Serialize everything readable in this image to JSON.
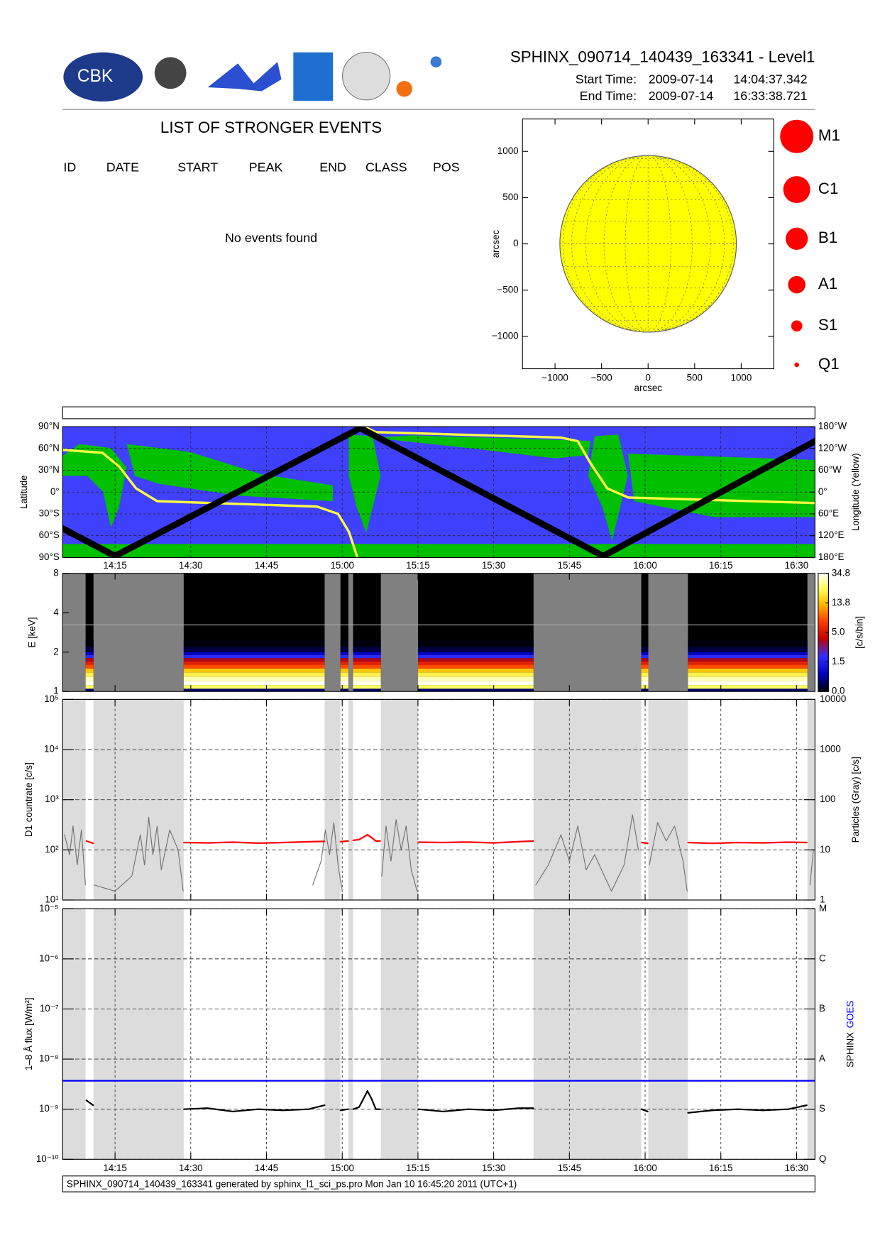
{
  "header": {
    "title": "SPHINX_090714_140439_163341 - Level1",
    "start_label": "Start Time:",
    "start_date": "2009-07-14",
    "start_time": "14:04:37.342",
    "end_label": "End Time:",
    "end_date": "2009-07-14",
    "end_time": "16:33:38.721",
    "logo_text": "CBK"
  },
  "events": {
    "title": "LIST OF STRONGER EVENTS",
    "columns": [
      "ID",
      "DATE",
      "START",
      "PEAK",
      "END",
      "CLASS",
      "POS"
    ],
    "message": "No events found"
  },
  "footer": "SPHINX_090714_140439_163341 generated by sphinx_l1_sci_ps.pro Mon Jan 10 16:45:20 2011 (UTC+1)",
  "chart_data": [
    {
      "type": "disk",
      "xlabel": "arcsec",
      "ylabel": "arcsec",
      "xlim": [
        -1350,
        1350
      ],
      "ylim": [
        -1350,
        1350
      ],
      "xticks": [
        {
          "value": -1000,
          "label": "−1000"
        },
        {
          "value": -500,
          "label": "−500"
        },
        0,
        500,
        1000
      ],
      "yticks": [
        {
          "value": -1000,
          "label": "−1000"
        },
        {
          "value": -500,
          "label": "−500"
        },
        0,
        500,
        1000
      ],
      "radius": 948,
      "color": "#ffff00",
      "classes": [
        "M1",
        "C1",
        "B1",
        "A1",
        "S1",
        "Q1"
      ],
      "class_color": "#ff0000"
    },
    {
      "type": "orbit",
      "ylabel": "Latitude",
      "y2label": "Longitude (Yellow)",
      "xlim": [
        50677,
        59619
      ],
      "xticks": [
        {
          "value": 51300,
          "label": "14:15"
        },
        {
          "value": 52200,
          "label": "14:30"
        },
        {
          "value": 53100,
          "label": "14:45"
        },
        {
          "value": 54000,
          "label": "15:00"
        },
        {
          "value": 54900,
          "label": "15:15"
        },
        {
          "value": 55800,
          "label": "15:30"
        },
        {
          "value": 56700,
          "label": "15:45"
        },
        {
          "value": 57600,
          "label": "16:00"
        },
        {
          "value": 58500,
          "label": "16:15"
        },
        {
          "value": 59400,
          "label": "16:30"
        }
      ],
      "ylim": [
        -90,
        90
      ],
      "yticks": [
        {
          "value": 90,
          "label": "90°N"
        },
        {
          "value": 60,
          "label": "60°N"
        },
        {
          "value": 30,
          "label": "30°N"
        },
        {
          "value": 0,
          "label": "0°"
        },
        {
          "value": -30,
          "label": "30°S"
        },
        {
          "value": -60,
          "label": "60°S"
        },
        {
          "value": -90,
          "label": "90°S"
        }
      ],
      "y2lim": [
        -180,
        180
      ],
      "y2ticks": [
        {
          "value": 180,
          "label": "180°W"
        },
        {
          "value": 120,
          "label": "120°W"
        },
        {
          "value": 60,
          "label": "60°W"
        },
        {
          "value": 0,
          "label": "0°"
        },
        {
          "value": -60,
          "label": "60°E"
        },
        {
          "value": -120,
          "label": "120°E"
        },
        {
          "value": -180,
          "label": "180°E"
        }
      ],
      "series": [
        {
          "color": "#ffff40",
          "axis": "y2",
          "x": [
            50677,
            51150,
            51350,
            51550,
            51800,
            53700,
            53950,
            54080,
            54180,
            54230,
            54260,
            54400,
            56600,
            56800,
            56950,
            57150,
            57400,
            59619
          ],
          "values": [
            116,
            108,
            70,
            10,
            -25,
            -40,
            -60,
            -110,
            -180,
            null,
            180,
            165,
            150,
            140,
            80,
            10,
            -15,
            -30
          ]
        },
        {
          "color": "#000000",
          "x": [
            50677,
            51300,
            54214,
            57102,
            59619
          ],
          "values": [
            -50,
            -88,
            88,
            -88,
            70
          ]
        }
      ]
    },
    {
      "type": "spectrogram",
      "ylabel": "E [keV]",
      "ylog": true,
      "ylim": [
        1,
        8
      ],
      "yticks": [
        1,
        2,
        4,
        8
      ],
      "xlim": [
        50677,
        59619
      ],
      "zlabel": "[c/s/bin]",
      "zticks": [
        {
          "value": 0,
          "label": "0.0"
        },
        1.5,
        {
          "value": 5,
          "label": "5.0"
        },
        13.8,
        34.8
      ],
      "data_intervals": [
        [
          50950,
          51044
        ],
        [
          52116,
          53791
        ],
        [
          53979,
          54073
        ],
        [
          54129,
          54459
        ],
        [
          54901,
          56274
        ],
        [
          57554,
          57638
        ],
        [
          58109,
          59529
        ]
      ],
      "energies": [
        1.0,
        1.05,
        1.12,
        1.2,
        1.3,
        1.4,
        1.5,
        1.6,
        1.7,
        1.8,
        1.9,
        2.0,
        2.2,
        2.5
      ],
      "rates": [
        0.5,
        25,
        34,
        30,
        22,
        15,
        9,
        6,
        4,
        2,
        1,
        0.3,
        0.05
      ]
    },
    {
      "type": "lightcurve",
      "ylabel": "D1 countrate [c/s]",
      "y2label": "Particles (Gray) [c/s]",
      "ylog": true,
      "xlim": [
        50677,
        59619
      ],
      "ylim": [
        10,
        100000
      ],
      "yticks": [
        {
          "value": 10,
          "label": "10¹"
        },
        {
          "value": 100,
          "label": "10²"
        },
        {
          "value": 1000,
          "label": "10³"
        },
        {
          "value": 10000,
          "label": "10⁴"
        },
        {
          "value": 100000,
          "label": "10⁵"
        }
      ],
      "y2lim": [
        1,
        10000
      ],
      "y2ticks": [
        1,
        10,
        100,
        1000,
        10000
      ],
      "shade_color": "#dcdcdc",
      "grid": true,
      "series": [
        {
          "color": "#707070",
          "axis": "y2",
          "x": [
            50700,
            50760,
            50800,
            50850,
            50900,
            50940,
            50948,
            51000,
            51050,
            51300,
            51500,
            51600,
            51650,
            51700,
            51750,
            51800,
            51850,
            51950,
            52050,
            52110,
            52900,
            53650,
            53750,
            53800,
            53850,
            53900,
            53950,
            54000,
            54300,
            54470,
            54520,
            54580,
            54640,
            54700,
            54760,
            54820,
            54890,
            55500,
            56300,
            56450,
            56600,
            56700,
            56800,
            56900,
            57000,
            57200,
            57350,
            57450,
            57520,
            57600,
            57650,
            57750,
            57850,
            57950,
            58050,
            58100,
            58800,
            59560,
            59600
          ],
          "values": [
            20,
            8,
            30,
            5,
            25,
            3,
            2,
            null,
            2,
            1.5,
            3,
            20,
            5,
            45,
            8,
            30,
            4,
            25,
            10,
            1.5,
            null,
            2,
            6,
            25,
            8,
            35,
            5,
            1.5,
            null,
            3,
            30,
            6,
            40,
            10,
            30,
            4,
            1.5,
            null,
            2,
            5,
            20,
            6,
            30,
            4,
            8,
            1.5,
            5,
            50,
            10,
            null,
            5,
            35,
            15,
            30,
            6,
            1.5,
            null,
            2,
            10
          ]
        },
        {
          "color": "#ff0000",
          "x": [
            50960,
            51040,
            51500,
            52120,
            52400,
            52700,
            53000,
            53300,
            53600,
            53790,
            53880,
            53980,
            54070,
            54100,
            54130,
            54200,
            54300,
            54350,
            54400,
            54450,
            54700,
            54905,
            55200,
            55500,
            55800,
            56100,
            56270,
            56900,
            57560,
            57630,
            57900,
            58110,
            58400,
            58700,
            59000,
            59300,
            59520
          ],
          "values": [
            150,
            135,
            null,
            140,
            138,
            142,
            136,
            140,
            145,
            148,
            null,
            146,
            150,
            null,
            155,
            160,
            200,
            175,
            150,
            150,
            null,
            142,
            140,
            143,
            138,
            146,
            150,
            null,
            140,
            135,
            null,
            140,
            135,
            140,
            138,
            142,
            140
          ]
        }
      ]
    },
    {
      "type": "lightcurve",
      "ylabel": "1–8 Å flux [W/m²]",
      "ylog": true,
      "xlim": [
        50677,
        59619
      ],
      "xticks": [
        {
          "value": 51300,
          "label": "14:15"
        },
        {
          "value": 52200,
          "label": "14:30"
        },
        {
          "value": 53100,
          "label": "14:45"
        },
        {
          "value": 54000,
          "label": "15:00"
        },
        {
          "value": 54900,
          "label": "15:15"
        },
        {
          "value": 55800,
          "label": "15:30"
        },
        {
          "value": 56700,
          "label": "15:45"
        },
        {
          "value": 57600,
          "label": "16:00"
        },
        {
          "value": 58500,
          "label": "16:15"
        },
        {
          "value": 59400,
          "label": "16:30"
        }
      ],
      "ylim": [
        1e-10,
        1e-05
      ],
      "yticks": [
        {
          "value": 1e-10,
          "label": "10⁻¹⁰"
        },
        {
          "value": 1e-09,
          "label": "10⁻⁹"
        },
        {
          "value": 1e-08,
          "label": "10⁻⁸"
        },
        {
          "value": 1e-07,
          "label": "10⁻⁷"
        },
        {
          "value": 1e-06,
          "label": "10⁻⁶"
        },
        {
          "value": 1e-05,
          "label": "10⁻⁵"
        }
      ],
      "class_ticks": [
        {
          "value": 1e-05,
          "label": "M"
        },
        {
          "value": 1e-06,
          "label": "C"
        },
        {
          "value": 1e-07,
          "label": "B"
        },
        {
          "value": 1e-08,
          "label": "A"
        },
        {
          "value": 1e-09,
          "label": "S"
        },
        {
          "value": 1e-10,
          "label": "Q"
        }
      ],
      "shade_color": "#dcdcdc",
      "grid": true,
      "legend": "right",
      "series": [
        {
          "name": "SPHINX",
          "color": "#000000",
          "x": [
            50960,
            51040,
            51500,
            52120,
            52400,
            52700,
            53000,
            53300,
            53600,
            53790,
            53880,
            53980,
            54070,
            54100,
            54130,
            54200,
            54300,
            54350,
            54400,
            54450,
            54700,
            54905,
            55200,
            55500,
            55800,
            56100,
            56270,
            56900,
            57560,
            57630,
            57900,
            58110,
            58400,
            58700,
            59000,
            59300,
            59520
          ],
          "values": [
            1.5e-09,
            1.2e-09,
            null,
            1e-09,
            1.05e-09,
            9e-10,
            1e-09,
            9.5e-10,
            1e-09,
            1.2e-09,
            null,
            9.5e-10,
            1e-09,
            null,
            1e-09,
            1.1e-09,
            2.3e-09,
            1.6e-09,
            1e-09,
            1e-09,
            null,
            1e-09,
            9e-10,
            1e-09,
            9.5e-10,
            1.05e-09,
            1.05e-09,
            null,
            1e-09,
            9e-10,
            null,
            8.5e-10,
            9.5e-10,
            1e-09,
            9.5e-10,
            1e-09,
            1.2e-09
          ]
        },
        {
          "name": "GOES",
          "color": "#0000ff",
          "x": [
            50677,
            59619
          ],
          "values": [
            3.7e-09,
            3.7e-09
          ]
        }
      ]
    }
  ]
}
